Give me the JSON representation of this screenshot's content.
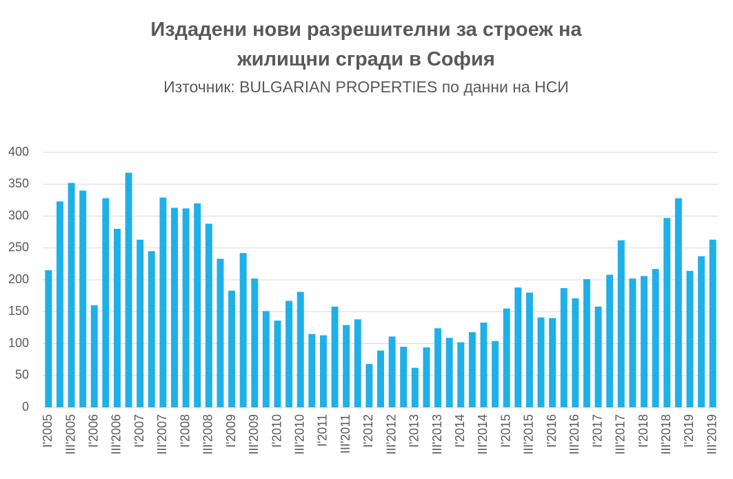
{
  "chart_data": {
    "type": "bar",
    "title_lines": [
      "Издадени нови разрешителни за строеж на",
      "жилищни сгради в София"
    ],
    "subtitle": "Източник: BULGARIAN PROPERTIES по данни на НСИ",
    "categories": [
      "I'2005",
      null,
      "III'2005",
      null,
      "I'2006",
      null,
      "III'2006",
      null,
      "I'2007",
      null,
      "III'2007",
      null,
      "I'2008",
      null,
      "III'2008",
      null,
      "I'2009",
      null,
      "III'2009",
      null,
      "I'2010",
      null,
      "III'2010",
      null,
      "I'2011",
      null,
      "III'2011",
      null,
      "I'2012",
      null,
      "III'2012",
      null,
      "I'2013",
      null,
      "III'2013",
      null,
      "I'2014",
      null,
      "III'2014",
      null,
      "I'2015",
      null,
      "III'2015",
      null,
      "I'2016",
      null,
      "III'2016",
      null,
      "I'2017",
      null,
      "III'2017",
      null,
      "I'2018",
      null,
      "III'2018",
      null,
      "I'2019",
      null,
      "III'2019"
    ],
    "values": [
      215,
      323,
      352,
      340,
      160,
      328,
      280,
      368,
      263,
      245,
      329,
      313,
      312,
      320,
      288,
      233,
      183,
      242,
      202,
      151,
      136,
      167,
      181,
      115,
      113,
      158,
      129,
      138,
      68,
      89,
      111,
      95,
      62,
      94,
      124,
      109,
      102,
      118,
      133,
      104,
      155,
      188,
      180,
      141,
      140,
      187,
      171,
      201,
      158,
      208,
      262,
      202,
      206,
      217,
      297,
      328,
      214,
      237,
      263
    ],
    "color": "#1fb0e8",
    "ylim": [
      0,
      400
    ],
    "yticks": [
      0,
      50,
      100,
      150,
      200,
      250,
      300,
      350,
      400
    ],
    "grid": true
  }
}
